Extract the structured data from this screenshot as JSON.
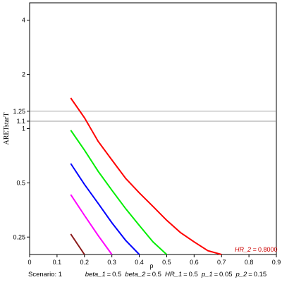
{
  "chart_data": {
    "type": "line",
    "title": "",
    "xlabel": "ρ",
    "ylabel": "ARETstarT",
    "y_scale": "log",
    "xlim": [
      0,
      0.9
    ],
    "ylim": [
      0.2,
      5
    ],
    "x_ticks": [
      "0",
      "0.1",
      "0.2",
      "0.3",
      "0.4",
      "0.5",
      "0.6",
      "0.7",
      "0.8",
      "0.9"
    ],
    "y_ticks": [
      {
        "value": 0.25,
        "label": "0.25"
      },
      {
        "value": 0.5,
        "label": "0.5"
      },
      {
        "value": 1,
        "label": "1"
      },
      {
        "value": 1.1,
        "label": "1.1"
      },
      {
        "value": 1.25,
        "label": "1.25"
      },
      {
        "value": 2,
        "label": "2"
      },
      {
        "value": 4,
        "label": "4"
      }
    ],
    "reference_lines": [
      1.1,
      1.25
    ],
    "series": [
      {
        "color": "#8b1a1a",
        "points": [
          [
            0.15,
            0.26
          ],
          [
            0.2,
            0.2
          ]
        ]
      },
      {
        "color": "#ff00ff",
        "points": [
          [
            0.15,
            0.43
          ],
          [
            0.2,
            0.33
          ],
          [
            0.25,
            0.255
          ],
          [
            0.3,
            0.2
          ]
        ]
      },
      {
        "color": "#0000ff",
        "points": [
          [
            0.15,
            0.64
          ],
          [
            0.2,
            0.49
          ],
          [
            0.25,
            0.385
          ],
          [
            0.3,
            0.3
          ],
          [
            0.35,
            0.24
          ],
          [
            0.4,
            0.2
          ]
        ]
      },
      {
        "color": "#00ee00",
        "points": [
          [
            0.15,
            0.98
          ],
          [
            0.2,
            0.76
          ],
          [
            0.25,
            0.58
          ],
          [
            0.3,
            0.455
          ],
          [
            0.35,
            0.36
          ],
          [
            0.4,
            0.29
          ],
          [
            0.45,
            0.235
          ],
          [
            0.5,
            0.2
          ]
        ]
      },
      {
        "color": "#ff0000",
        "points": [
          [
            0.15,
            1.48
          ],
          [
            0.2,
            1.15
          ],
          [
            0.25,
            0.85
          ],
          [
            0.3,
            0.67
          ],
          [
            0.35,
            0.53
          ],
          [
            0.4,
            0.44
          ],
          [
            0.45,
            0.37
          ],
          [
            0.5,
            0.31
          ],
          [
            0.55,
            0.265
          ],
          [
            0.6,
            0.235
          ],
          [
            0.65,
            0.21
          ],
          [
            0.7,
            0.2
          ]
        ]
      }
    ],
    "legend": {
      "label": "HR_2 =",
      "value": "0.8000",
      "color": "#cc0000"
    }
  },
  "footer": {
    "scenario": "Scenario: 1",
    "params": [
      {
        "key": "beta_1",
        "value": "0.5"
      },
      {
        "key": "beta_2",
        "value": "0.5"
      },
      {
        "key": "HR_1",
        "value": "0.5"
      },
      {
        "key": "p_1",
        "value": "0.05"
      },
      {
        "key": "p_2",
        "value": "0.15"
      }
    ]
  }
}
